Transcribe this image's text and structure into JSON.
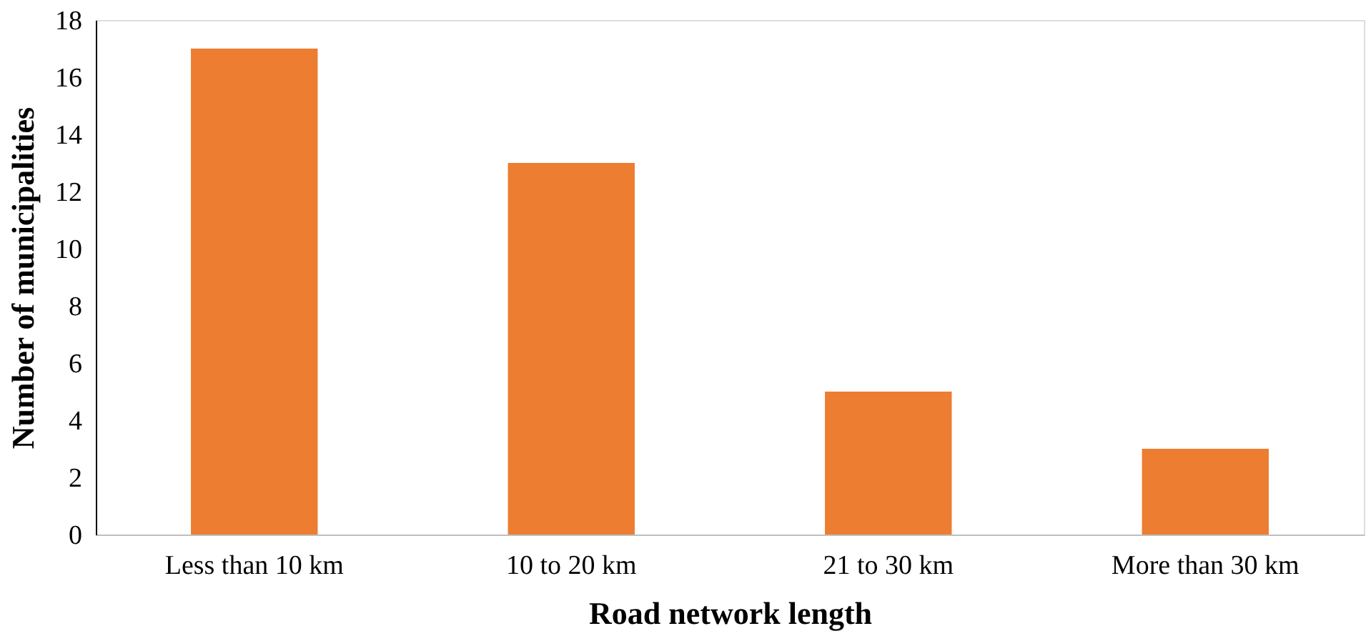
{
  "chart_data": {
    "type": "bar",
    "xlabel": "Road network length",
    "ylabel": "Number of municipalities",
    "categories": [
      "Less than 10 km",
      "10 to 20 km",
      "21 to 30 km",
      "More than 30 km"
    ],
    "values": [
      17,
      13,
      5,
      3
    ],
    "color": "#ed7d31",
    "ylim": [
      0,
      18
    ],
    "yticks": [
      0,
      2,
      4,
      6,
      8,
      10,
      12,
      14,
      16,
      18
    ],
    "grid": false
  }
}
